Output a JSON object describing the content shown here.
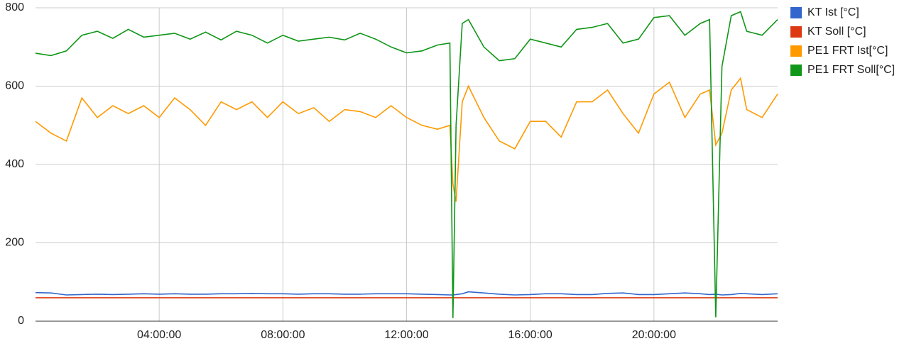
{
  "chart_data": {
    "type": "line",
    "x": [
      0,
      0.5,
      1,
      1.5,
      2,
      2.5,
      3,
      3.5,
      4,
      4.5,
      5,
      5.5,
      6,
      6.5,
      7,
      7.5,
      8,
      8.5,
      9,
      9.5,
      10,
      10.5,
      11,
      11.5,
      12,
      12.5,
      13,
      13.4,
      13.5,
      13.6,
      13.8,
      14,
      14.5,
      15,
      15.5,
      16,
      16.5,
      17,
      17.5,
      18,
      18.5,
      19,
      19.5,
      20,
      20.5,
      21,
      21.5,
      21.8,
      22,
      22.2,
      22.5,
      22.8,
      23,
      23.5,
      24
    ],
    "series": [
      {
        "name": "KT Ist [°C]",
        "color": "#3366cc",
        "values": [
          73,
          72,
          67,
          68,
          69,
          68,
          69,
          70,
          69,
          70,
          69,
          69,
          70,
          70,
          71,
          70,
          70,
          69,
          70,
          70,
          69,
          69,
          70,
          70,
          70,
          69,
          68,
          67,
          67,
          68,
          70,
          75,
          72,
          69,
          67,
          68,
          70,
          70,
          68,
          68,
          71,
          72,
          68,
          68,
          70,
          72,
          70,
          68,
          69,
          67,
          68,
          71,
          70,
          68,
          70
        ]
      },
      {
        "name": "KT Soll [°C]",
        "color": "#dc3912",
        "values": [
          60,
          60,
          60,
          60,
          60,
          60,
          60,
          60,
          60,
          60,
          60,
          60,
          60,
          60,
          60,
          60,
          60,
          60,
          60,
          60,
          60,
          60,
          60,
          60,
          60,
          60,
          60,
          60,
          60,
          60,
          60,
          60,
          60,
          60,
          60,
          60,
          60,
          60,
          60,
          60,
          60,
          60,
          60,
          60,
          60,
          60,
          60,
          60,
          60,
          60,
          60,
          60,
          60,
          60,
          60
        ]
      },
      {
        "name": "PE1 FRT Ist[°C]",
        "color": "#ff9900",
        "values": [
          510,
          480,
          460,
          570,
          520,
          550,
          530,
          550,
          520,
          570,
          540,
          500,
          560,
          540,
          560,
          520,
          560,
          530,
          545,
          510,
          540,
          535,
          520,
          550,
          520,
          500,
          490,
          500,
          350,
          305,
          560,
          600,
          520,
          460,
          440,
          510,
          510,
          470,
          560,
          560,
          590,
          530,
          480,
          580,
          610,
          520,
          580,
          590,
          450,
          480,
          590,
          620,
          540,
          520,
          580
        ]
      },
      {
        "name": "PE1 FRT Soll[°C]",
        "color": "#109618",
        "values": [
          684,
          678,
          690,
          730,
          740,
          722,
          745,
          725,
          730,
          735,
          720,
          738,
          718,
          740,
          730,
          710,
          730,
          715,
          720,
          725,
          718,
          735,
          720,
          700,
          685,
          690,
          705,
          710,
          8,
          500,
          760,
          770,
          700,
          665,
          670,
          720,
          710,
          700,
          745,
          750,
          760,
          710,
          720,
          775,
          780,
          730,
          760,
          770,
          10,
          650,
          780,
          790,
          740,
          730,
          770
        ]
      }
    ],
    "xlim": [
      0,
      24
    ],
    "xticks": [
      {
        "value": 4,
        "label": "04:00:00"
      },
      {
        "value": 8,
        "label": "08:00:00"
      },
      {
        "value": 12,
        "label": "12:00:00"
      },
      {
        "value": 16,
        "label": "16:00:00"
      },
      {
        "value": 20,
        "label": "20:00:00"
      }
    ],
    "ylim": [
      0,
      800
    ],
    "yticks": [
      0,
      200,
      400,
      600,
      800
    ],
    "grid": true,
    "legend": "right"
  }
}
